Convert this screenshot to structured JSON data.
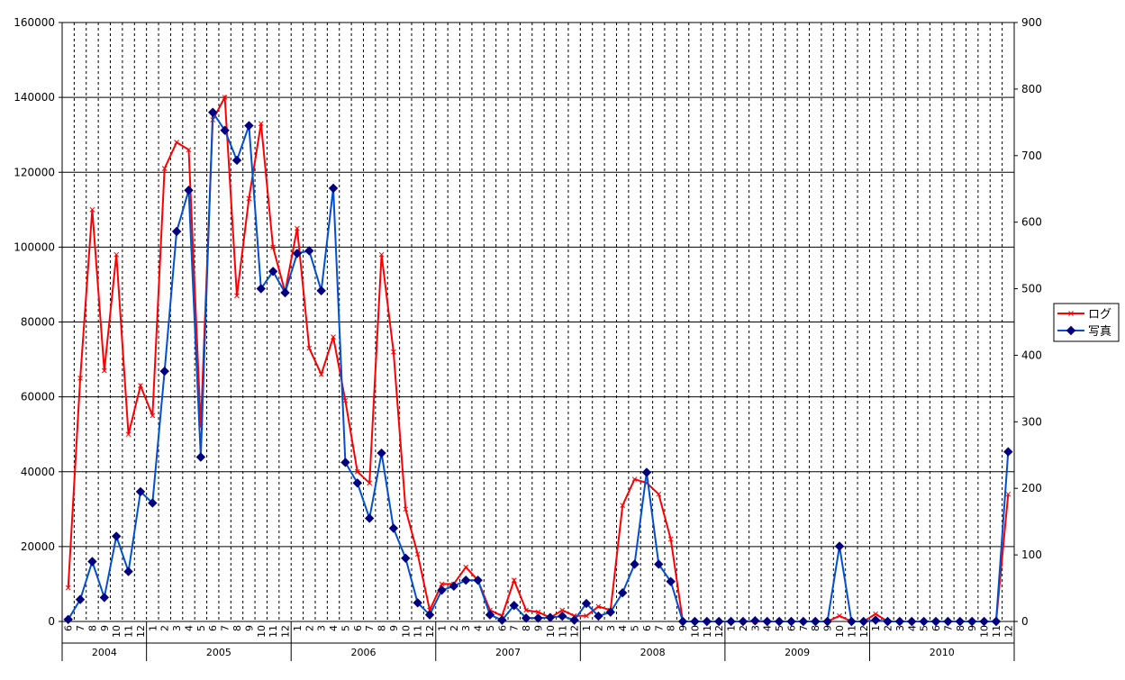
{
  "chart_data": {
    "type": "line",
    "categories": [
      "6",
      "7",
      "8",
      "9",
      "10",
      "11",
      "12",
      "1",
      "2",
      "3",
      "4",
      "5",
      "6",
      "7",
      "8",
      "9",
      "10",
      "11",
      "12",
      "1",
      "2",
      "3",
      "4",
      "5",
      "6",
      "7",
      "8",
      "9",
      "10",
      "11",
      "12",
      "1",
      "2",
      "3",
      "4",
      "5",
      "6",
      "7",
      "8",
      "9",
      "10",
      "11",
      "12",
      "1",
      "2",
      "3",
      "4",
      "5",
      "6",
      "7",
      "8",
      "9",
      "10",
      "11",
      "12",
      "1",
      "2",
      "3",
      "4",
      "5",
      "6",
      "7",
      "8",
      "9",
      "10",
      "11",
      "12",
      "1",
      "2",
      "3",
      "4",
      "5",
      "6",
      "7",
      "8",
      "9",
      "10",
      "11",
      "12"
    ],
    "year_groups": [
      {
        "label": "2004",
        "count": 7
      },
      {
        "label": "2005",
        "count": 12
      },
      {
        "label": "2006",
        "count": 12
      },
      {
        "label": "2007",
        "count": 12
      },
      {
        "label": "2008",
        "count": 12
      },
      {
        "label": "2009",
        "count": 12
      },
      {
        "label": "2010",
        "count": 12
      }
    ],
    "y_left": {
      "min": 0,
      "max": 160000,
      "step": 20000,
      "ticks": [
        "0",
        "20000",
        "40000",
        "60000",
        "80000",
        "100000",
        "120000",
        "140000",
        "160000"
      ]
    },
    "y_right": {
      "min": 0,
      "max": 900,
      "step": 100,
      "ticks": [
        "0",
        "100",
        "200",
        "300",
        "400",
        "500",
        "600",
        "700",
        "800",
        "900"
      ]
    },
    "series": [
      {
        "name": "ログ",
        "axis": "left",
        "color": "#ff0000",
        "marker": "x",
        "values": [
          9000,
          65000,
          110000,
          67000,
          98000,
          50000,
          63000,
          55000,
          121000,
          128000,
          126000,
          52000,
          134000,
          140000,
          87000,
          113000,
          133000,
          100000,
          88000,
          105000,
          73000,
          66000,
          76000,
          59000,
          40000,
          37000,
          98000,
          72000,
          30000,
          18000,
          3000,
          10000,
          10000,
          14500,
          11000,
          3000,
          1500,
          11000,
          3000,
          2500,
          1000,
          3000,
          1500,
          1500,
          4000,
          3000,
          31000,
          38000,
          37000,
          34000,
          22000,
          0,
          0,
          0,
          0,
          0,
          0,
          0,
          0,
          0,
          0,
          0,
          0,
          0,
          1500,
          0,
          0,
          2000,
          0,
          0,
          0,
          0,
          0,
          0,
          0,
          0,
          0,
          0,
          34000
        ]
      },
      {
        "name": "写真",
        "axis": "right",
        "color": "#0050d0",
        "marker": "diamond",
        "values": [
          3,
          33,
          90,
          36,
          128,
          75,
          195,
          178,
          376,
          586,
          648,
          247,
          765,
          738,
          693,
          745,
          500,
          526,
          494,
          553,
          557,
          497,
          651,
          239,
          208,
          155,
          253,
          140,
          95,
          28,
          10,
          47,
          53,
          62,
          62,
          10,
          2,
          24,
          5,
          5,
          6,
          8,
          2,
          27,
          8,
          14,
          43,
          86,
          224,
          86,
          60,
          0,
          0,
          0,
          0,
          0,
          0,
          1,
          0,
          0,
          0,
          0,
          0,
          0,
          113,
          0,
          0,
          2,
          0,
          0,
          0,
          0,
          0,
          0,
          0,
          0,
          0,
          0,
          255
        ]
      }
    ],
    "legend": {
      "position": "right",
      "entries": [
        "ログ",
        "写真"
      ]
    },
    "grid": {
      "horizontal": "solid",
      "vertical": "dashed"
    }
  }
}
